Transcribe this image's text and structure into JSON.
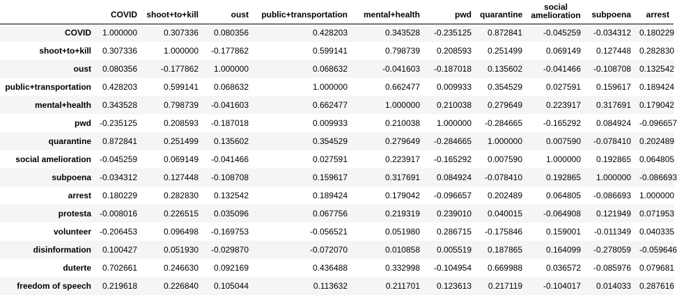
{
  "table": {
    "index_header": "",
    "columns": [
      "COVID",
      "shoot+to+kill",
      "oust",
      "public+transportation",
      "mental+health",
      "pwd",
      "quarantine",
      "social amelioration",
      "subpoena",
      "arrest"
    ],
    "rows": [
      {
        "label": "COVID",
        "values": [
          "1.000000",
          "0.307336",
          "0.080356",
          "0.428203",
          "0.343528",
          "-0.235125",
          "0.872841",
          "-0.045259",
          "-0.034312",
          "0.180229"
        ]
      },
      {
        "label": "shoot+to+kill",
        "values": [
          "0.307336",
          "1.000000",
          "-0.177862",
          "0.599141",
          "0.798739",
          "0.208593",
          "0.251499",
          "0.069149",
          "0.127448",
          "0.282830"
        ]
      },
      {
        "label": "oust",
        "values": [
          "0.080356",
          "-0.177862",
          "1.000000",
          "0.068632",
          "-0.041603",
          "-0.187018",
          "0.135602",
          "-0.041466",
          "-0.108708",
          "0.132542"
        ]
      },
      {
        "label": "public+transportation",
        "values": [
          "0.428203",
          "0.599141",
          "0.068632",
          "1.000000",
          "0.662477",
          "0.009933",
          "0.354529",
          "0.027591",
          "0.159617",
          "0.189424"
        ]
      },
      {
        "label": "mental+health",
        "values": [
          "0.343528",
          "0.798739",
          "-0.041603",
          "0.662477",
          "1.000000",
          "0.210038",
          "0.279649",
          "0.223917",
          "0.317691",
          "0.179042"
        ]
      },
      {
        "label": "pwd",
        "values": [
          "-0.235125",
          "0.208593",
          "-0.187018",
          "0.009933",
          "0.210038",
          "1.000000",
          "-0.284665",
          "-0.165292",
          "0.084924",
          "-0.096657"
        ]
      },
      {
        "label": "quarantine",
        "values": [
          "0.872841",
          "0.251499",
          "0.135602",
          "0.354529",
          "0.279649",
          "-0.284665",
          "1.000000",
          "0.007590",
          "-0.078410",
          "0.202489"
        ]
      },
      {
        "label": "social amelioration",
        "values": [
          "-0.045259",
          "0.069149",
          "-0.041466",
          "0.027591",
          "0.223917",
          "-0.165292",
          "0.007590",
          "1.000000",
          "0.192865",
          "0.064805"
        ]
      },
      {
        "label": "subpoena",
        "values": [
          "-0.034312",
          "0.127448",
          "-0.108708",
          "0.159617",
          "0.317691",
          "0.084924",
          "-0.078410",
          "0.192865",
          "1.000000",
          "-0.086693"
        ]
      },
      {
        "label": "arrest",
        "values": [
          "0.180229",
          "0.282830",
          "0.132542",
          "0.189424",
          "0.179042",
          "-0.096657",
          "0.202489",
          "0.064805",
          "-0.086693",
          "1.000000"
        ]
      },
      {
        "label": "protesta",
        "values": [
          "-0.008016",
          "0.226515",
          "0.035096",
          "0.067756",
          "0.219319",
          "0.239010",
          "0.040015",
          "-0.064908",
          "0.121949",
          "0.071953"
        ]
      },
      {
        "label": "volunteer",
        "values": [
          "-0.206453",
          "0.096498",
          "-0.169753",
          "-0.056521",
          "0.051980",
          "0.286715",
          "-0.175846",
          "0.159001",
          "-0.011349",
          "0.040335"
        ]
      },
      {
        "label": "disinformation",
        "values": [
          "0.100427",
          "0.051930",
          "-0.029870",
          "-0.072070",
          "0.010858",
          "0.005519",
          "0.187865",
          "0.164099",
          "-0.278059",
          "-0.059646"
        ]
      },
      {
        "label": "duterte",
        "values": [
          "0.702661",
          "0.246630",
          "0.092169",
          "0.436488",
          "0.332998",
          "-0.104954",
          "0.669988",
          "0.036572",
          "-0.085976",
          "0.079681"
        ]
      },
      {
        "label": "freedom of speech",
        "values": [
          "0.219618",
          "0.226840",
          "0.105044",
          "0.113632",
          "0.211701",
          "0.123613",
          "0.217119",
          "-0.104017",
          "0.014033",
          "0.287616"
        ]
      }
    ]
  }
}
